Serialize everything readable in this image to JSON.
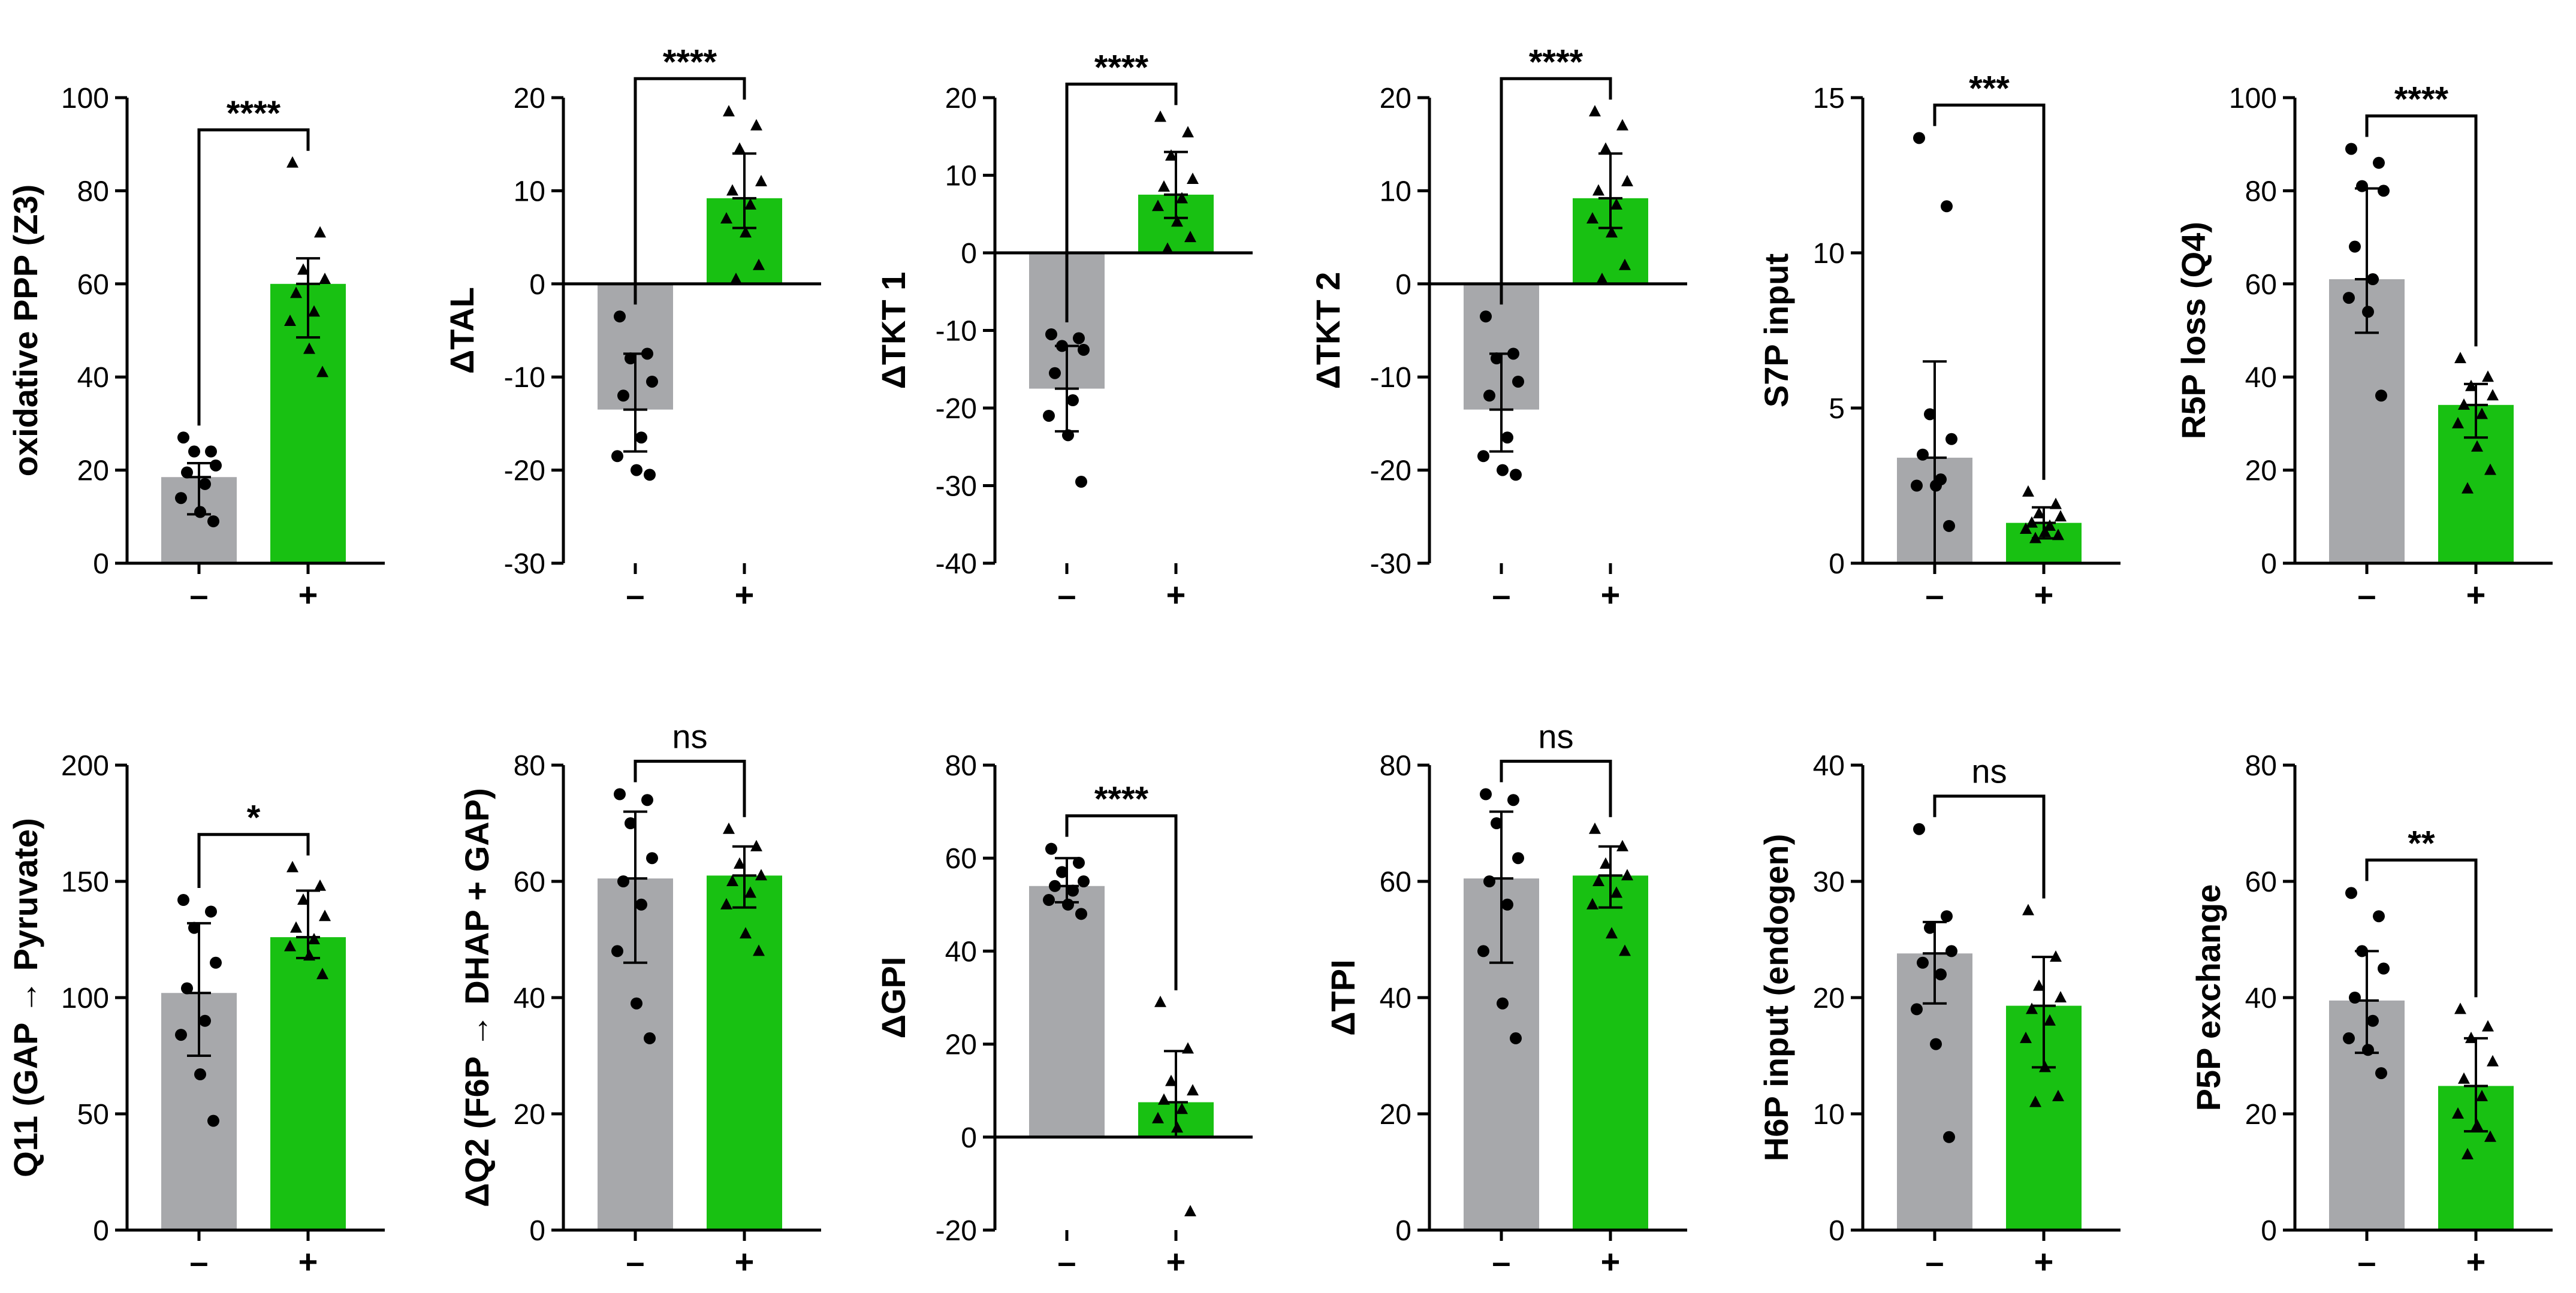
{
  "colors": {
    "control": "#a7a8ab",
    "treated": "#18c112",
    "axis": "#000000",
    "points": "#000000"
  },
  "chart_data": [
    {
      "type": "bar",
      "title": "",
      "xlabel": "",
      "ylabel": "oxidative PPP (Z3)",
      "categories": [
        "–",
        "+"
      ],
      "ylim": [
        0,
        100
      ],
      "yticks": [
        0,
        20,
        40,
        60,
        80,
        100
      ],
      "tick_labels": [
        "0",
        "20",
        "40",
        "60",
        "80",
        "100"
      ],
      "significance": "****",
      "series": [
        {
          "name": "–",
          "mean": 18.5,
          "sd_low": 10.5,
          "sd_high": 21.5,
          "marker": "circle",
          "points": [
            27,
            24,
            24,
            21,
            19.5,
            17,
            14,
            11,
            9
          ]
        },
        {
          "name": "+",
          "mean": 60,
          "sd_low": 48.5,
          "sd_high": 65.5,
          "marker": "triangle",
          "points": [
            86,
            71,
            63,
            61,
            58,
            54,
            52,
            46,
            41
          ]
        }
      ]
    },
    {
      "type": "bar",
      "title": "",
      "xlabel": "",
      "ylabel": "ΔTAL",
      "categories": [
        "–",
        "+"
      ],
      "ylim": [
        -30,
        20
      ],
      "yticks": [
        -30,
        -20,
        -10,
        0,
        10,
        20
      ],
      "tick_labels": [
        "-30",
        "-20",
        "-10",
        "0",
        "10",
        "20"
      ],
      "significance": "****",
      "series": [
        {
          "name": "–",
          "mean": -13.5,
          "sd_low": -18,
          "sd_high": -7.5,
          "marker": "circle",
          "points": [
            -3.5,
            -7.5,
            -8,
            -10.5,
            -12,
            -16.5,
            -18.5,
            -20,
            -20.5
          ]
        },
        {
          "name": "+",
          "mean": 9.2,
          "sd_low": 6,
          "sd_high": 14,
          "marker": "triangle",
          "points": [
            18.5,
            17,
            14.5,
            11,
            10,
            8.5,
            7,
            5.5,
            2,
            0.5
          ]
        }
      ]
    },
    {
      "type": "bar",
      "title": "",
      "xlabel": "",
      "ylabel": "ΔTKT 1",
      "categories": [
        "–",
        "+"
      ],
      "ylim": [
        -40,
        20
      ],
      "yticks": [
        -40,
        -30,
        -20,
        -10,
        0,
        10,
        20
      ],
      "tick_labels": [
        "-40",
        "-30",
        "-20",
        "-10",
        "0",
        "10",
        "20"
      ],
      "significance": "****",
      "series": [
        {
          "name": "–",
          "mean": -17.5,
          "sd_low": -23,
          "sd_high": -12,
          "marker": "circle",
          "points": [
            -10.5,
            -11,
            -12,
            -12.5,
            -15.5,
            -19,
            -21,
            -23.5,
            -29.5
          ]
        },
        {
          "name": "+",
          "mean": 7.5,
          "sd_low": 4.5,
          "sd_high": 13,
          "marker": "triangle",
          "points": [
            17.5,
            15.5,
            12.5,
            9.5,
            8.5,
            7,
            6,
            4,
            2,
            0.5
          ]
        }
      ]
    },
    {
      "type": "bar",
      "title": "",
      "xlabel": "",
      "ylabel": "ΔTKT 2",
      "categories": [
        "–",
        "+"
      ],
      "ylim": [
        -30,
        20
      ],
      "yticks": [
        -30,
        -20,
        -10,
        0,
        10,
        20
      ],
      "tick_labels": [
        "-30",
        "-20",
        "-10",
        "0",
        "10",
        "20"
      ],
      "significance": "****",
      "series": [
        {
          "name": "–",
          "mean": -13.5,
          "sd_low": -18,
          "sd_high": -7.5,
          "marker": "circle",
          "points": [
            -3.5,
            -7.5,
            -8,
            -10.5,
            -12,
            -16.5,
            -18.5,
            -20,
            -20.5
          ]
        },
        {
          "name": "+",
          "mean": 9.2,
          "sd_low": 6,
          "sd_high": 14,
          "marker": "triangle",
          "points": [
            18.5,
            17,
            14.5,
            11,
            10,
            8.5,
            7,
            5.5,
            2,
            0.5
          ]
        }
      ]
    },
    {
      "type": "bar",
      "title": "",
      "xlabel": "",
      "ylabel": "S7P input",
      "categories": [
        "–",
        "+"
      ],
      "ylim": [
        0,
        15
      ],
      "yticks": [
        0,
        5,
        10,
        15
      ],
      "tick_labels": [
        "0",
        "5",
        "10",
        "15"
      ],
      "significance": "***",
      "series": [
        {
          "name": "–",
          "mean": 3.4,
          "sd_low": 0,
          "sd_high": 6.5,
          "marker": "circle",
          "points": [
            13.7,
            11.5,
            4.8,
            4,
            3.5,
            2.7,
            2.5,
            2.5,
            1.2
          ]
        },
        {
          "name": "+",
          "mean": 1.3,
          "sd_low": 0.8,
          "sd_high": 1.8,
          "marker": "triangle",
          "points": [
            2.3,
            1.9,
            1.6,
            1.5,
            1.3,
            1.2,
            1.1,
            1,
            0.9,
            0.8
          ]
        }
      ]
    },
    {
      "type": "bar",
      "title": "",
      "xlabel": "",
      "ylabel": "R5P loss (Q4)",
      "categories": [
        "–",
        "+"
      ],
      "ylim": [
        0,
        100
      ],
      "yticks": [
        0,
        20,
        40,
        60,
        80,
        100
      ],
      "tick_labels": [
        "0",
        "20",
        "40",
        "60",
        "80",
        "100"
      ],
      "significance": "****",
      "series": [
        {
          "name": "–",
          "mean": 61,
          "sd_low": 49.5,
          "sd_high": 80.5,
          "marker": "circle",
          "points": [
            89,
            86,
            81,
            80,
            68,
            61,
            57,
            54,
            36
          ]
        },
        {
          "name": "+",
          "mean": 34,
          "sd_low": 27,
          "sd_high": 38.5,
          "marker": "triangle",
          "points": [
            44,
            40,
            38,
            36,
            34,
            32,
            30,
            25,
            20,
            16
          ]
        }
      ]
    },
    {
      "type": "bar",
      "title": "",
      "xlabel": "",
      "ylabel": "Q11 (GAP → Pyruvate)",
      "categories": [
        "–",
        "+"
      ],
      "ylim": [
        0,
        200
      ],
      "yticks": [
        0,
        50,
        100,
        150,
        200
      ],
      "tick_labels": [
        "0",
        "50",
        "100",
        "150",
        "200"
      ],
      "significance": "*",
      "series": [
        {
          "name": "–",
          "mean": 102,
          "sd_low": 75,
          "sd_high": 132,
          "marker": "circle",
          "points": [
            142,
            137,
            130,
            115,
            104,
            90,
            84,
            67,
            47
          ]
        },
        {
          "name": "+",
          "mean": 126,
          "sd_low": 117,
          "sd_high": 146,
          "marker": "triangle",
          "points": [
            156,
            148,
            142,
            135,
            130,
            125,
            122,
            118,
            110
          ]
        }
      ]
    },
    {
      "type": "bar",
      "title": "",
      "xlabel": "",
      "ylabel": "ΔQ2 (F6P → DHAP + GAP)",
      "categories": [
        "–",
        "+"
      ],
      "ylim": [
        0,
        80
      ],
      "yticks": [
        0,
        20,
        40,
        60,
        80
      ],
      "tick_labels": [
        "0",
        "20",
        "40",
        "60",
        "80"
      ],
      "significance": "ns",
      "series": [
        {
          "name": "–",
          "mean": 60.5,
          "sd_low": 46,
          "sd_high": 72,
          "marker": "circle",
          "points": [
            75,
            74,
            70,
            64,
            60,
            56,
            48,
            39,
            33
          ]
        },
        {
          "name": "+",
          "mean": 61,
          "sd_low": 55.5,
          "sd_high": 66,
          "marker": "triangle",
          "points": [
            69,
            66,
            63,
            61,
            60,
            58,
            56,
            51,
            48
          ]
        }
      ]
    },
    {
      "type": "bar",
      "title": "",
      "xlabel": "",
      "ylabel": "ΔGPI",
      "categories": [
        "–",
        "+"
      ],
      "ylim": [
        -20,
        80
      ],
      "yticks": [
        -20,
        0,
        20,
        40,
        60,
        80
      ],
      "tick_labels": [
        "-20",
        "0",
        "20",
        "40",
        "60",
        "80"
      ],
      "significance": "****",
      "series": [
        {
          "name": "–",
          "mean": 54,
          "sd_low": 50.5,
          "sd_high": 60,
          "marker": "circle",
          "points": [
            62,
            59,
            57,
            55,
            54,
            53,
            51,
            50,
            48
          ]
        },
        {
          "name": "+",
          "mean": 7.5,
          "sd_low": 0,
          "sd_high": 18.5,
          "marker": "triangle",
          "points": [
            29,
            19,
            12,
            10,
            8,
            6,
            4,
            2,
            -16
          ]
        }
      ]
    },
    {
      "type": "bar",
      "title": "",
      "xlabel": "",
      "ylabel": "ΔTPI",
      "categories": [
        "–",
        "+"
      ],
      "ylim": [
        0,
        80
      ],
      "yticks": [
        0,
        20,
        40,
        60,
        80
      ],
      "tick_labels": [
        "0",
        "20",
        "40",
        "60",
        "80"
      ],
      "significance": "ns",
      "series": [
        {
          "name": "–",
          "mean": 60.5,
          "sd_low": 46,
          "sd_high": 72,
          "marker": "circle",
          "points": [
            75,
            74,
            70,
            64,
            60,
            56,
            48,
            39,
            33
          ]
        },
        {
          "name": "+",
          "mean": 61,
          "sd_low": 55.5,
          "sd_high": 66,
          "marker": "triangle",
          "points": [
            69,
            66,
            63,
            61,
            60,
            58,
            56,
            51,
            48
          ]
        }
      ]
    },
    {
      "type": "bar",
      "title": "",
      "xlabel": "",
      "ylabel": "H6P input (endogen)",
      "categories": [
        "–",
        "+"
      ],
      "ylim": [
        0,
        40
      ],
      "yticks": [
        0,
        10,
        20,
        30,
        40
      ],
      "tick_labels": [
        "0",
        "10",
        "20",
        "30",
        "40"
      ],
      "significance": "ns",
      "series": [
        {
          "name": "–",
          "mean": 23.8,
          "sd_low": 19.5,
          "sd_high": 26.5,
          "marker": "circle",
          "points": [
            34.5,
            27,
            26,
            24,
            23,
            22,
            19,
            16,
            8
          ]
        },
        {
          "name": "+",
          "mean": 19.3,
          "sd_low": 14,
          "sd_high": 23.5,
          "marker": "triangle",
          "points": [
            27.5,
            23.5,
            21,
            20,
            19,
            18,
            16.5,
            14,
            11.5,
            11
          ]
        }
      ]
    },
    {
      "type": "bar",
      "title": "",
      "xlabel": "",
      "ylabel": "P5P exchange",
      "categories": [
        "–",
        "+"
      ],
      "ylim": [
        0,
        80
      ],
      "yticks": [
        0,
        20,
        40,
        60,
        80
      ],
      "tick_labels": [
        "0",
        "20",
        "40",
        "60",
        "80"
      ],
      "significance": "**",
      "series": [
        {
          "name": "–",
          "mean": 39.5,
          "sd_low": 30.5,
          "sd_high": 48,
          "marker": "circle",
          "points": [
            58,
            54,
            48,
            45,
            40,
            36,
            33,
            31,
            27
          ]
        },
        {
          "name": "+",
          "mean": 24.8,
          "sd_low": 17,
          "sd_high": 33,
          "marker": "triangle",
          "points": [
            38,
            35,
            33,
            29,
            26,
            23,
            20,
            18,
            16,
            13
          ]
        }
      ]
    }
  ]
}
